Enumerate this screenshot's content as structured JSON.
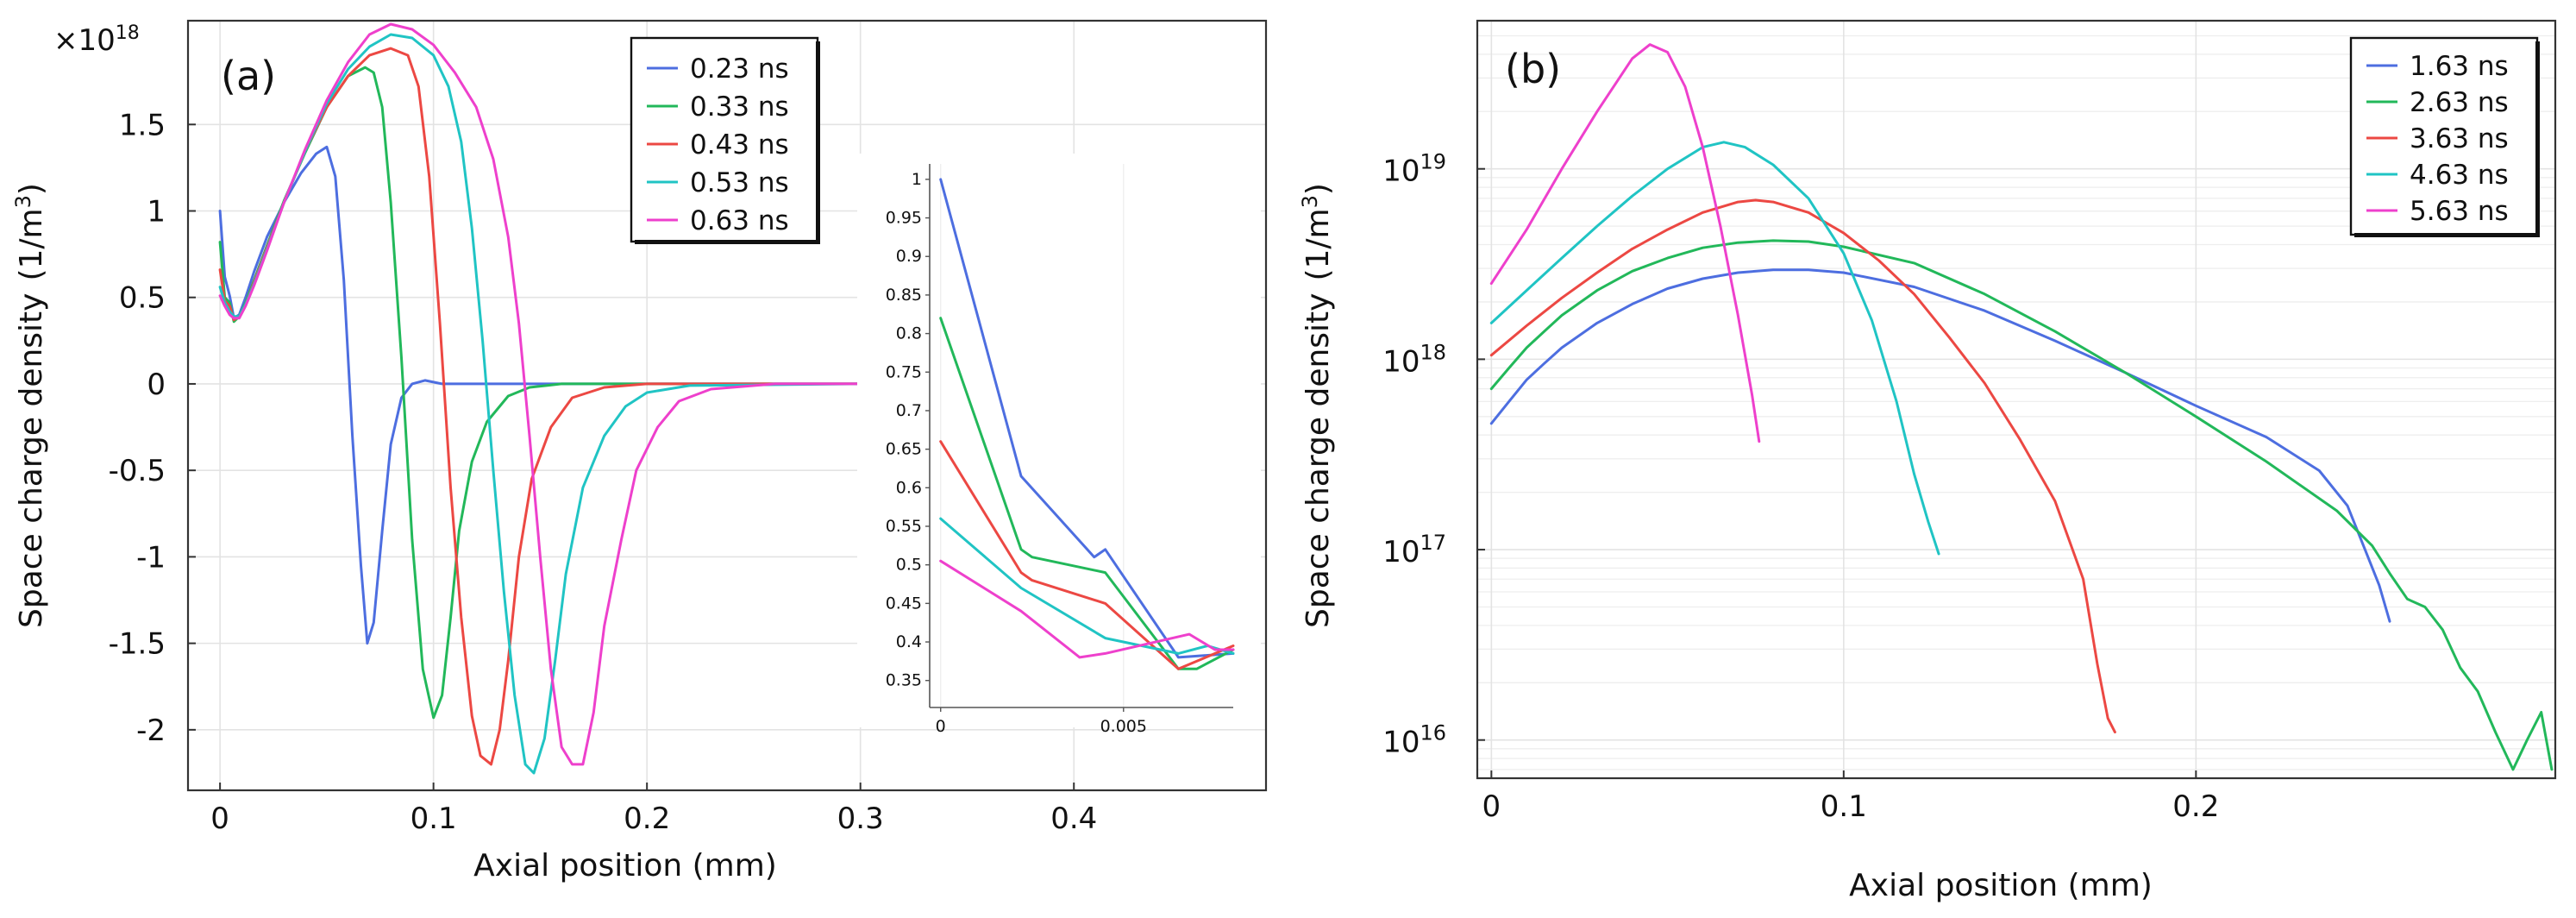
{
  "chart_data": [
    {
      "type": "line",
      "panel_label": "(a)",
      "xlabel": "Axial position (mm)",
      "ylabel": "Space charge density",
      "ylabel_unit_pre": "(1/m",
      "ylabel_unit_sup": "3",
      "ylabel_unit_post": ")",
      "multiplier_base": "×10",
      "multiplier_exp": "18",
      "xlim": [
        -0.015,
        0.49
      ],
      "ylim": [
        -2.35,
        2.1
      ],
      "xticks": [
        0,
        0.1,
        0.2,
        0.3,
        0.4
      ],
      "xtick_labels": [
        "0",
        "0.1",
        "0.2",
        "0.3",
        "0.4"
      ],
      "yticks": [
        1.5,
        1,
        0.5,
        0,
        -0.5,
        -1,
        -1.5,
        -2
      ],
      "ytick_labels": [
        "1.5",
        "1",
        "0.5",
        "0",
        "-0.5",
        "-1",
        "-1.5",
        "-2"
      ],
      "legend_position": "top-right",
      "series": [
        {
          "name": "0.23 ns",
          "color": "#4d6ee0",
          "x": [
            0,
            0.0022,
            0.0045,
            0.0065,
            0.009,
            0.012,
            0.016,
            0.022,
            0.03,
            0.038,
            0.045,
            0.05,
            0.054,
            0.058,
            0.062,
            0.066,
            0.069,
            0.072,
            0.076,
            0.08,
            0.085,
            0.09,
            0.096,
            0.104,
            0.115,
            0.13,
            0.15,
            0.2,
            0.3
          ],
          "y": [
            1.0,
            0.62,
            0.51,
            0.38,
            0.4,
            0.5,
            0.65,
            0.85,
            1.05,
            1.22,
            1.33,
            1.37,
            1.2,
            0.6,
            -0.3,
            -1.05,
            -1.5,
            -1.38,
            -0.85,
            -0.35,
            -0.08,
            0.0,
            0.02,
            0.0,
            0.0,
            0.0,
            0.0,
            0.0,
            0.0
          ]
        },
        {
          "name": "0.33 ns",
          "color": "#22b85a",
          "x": [
            0,
            0.0022,
            0.0045,
            0.0065,
            0.009,
            0.012,
            0.016,
            0.022,
            0.03,
            0.04,
            0.05,
            0.06,
            0.068,
            0.072,
            0.076,
            0.08,
            0.085,
            0.09,
            0.095,
            0.1,
            0.104,
            0.108,
            0.112,
            0.118,
            0.125,
            0.135,
            0.145,
            0.16,
            0.18,
            0.3
          ],
          "y": [
            0.82,
            0.5,
            0.47,
            0.36,
            0.39,
            0.47,
            0.6,
            0.8,
            1.06,
            1.34,
            1.6,
            1.78,
            1.83,
            1.8,
            1.6,
            1.05,
            0.15,
            -0.9,
            -1.65,
            -1.93,
            -1.8,
            -1.35,
            -0.85,
            -0.45,
            -0.22,
            -0.07,
            -0.02,
            0.0,
            0.0,
            0.0
          ]
        },
        {
          "name": "0.43 ns",
          "color": "#ec4843",
          "x": [
            0,
            0.0022,
            0.0045,
            0.0065,
            0.009,
            0.012,
            0.016,
            0.022,
            0.03,
            0.04,
            0.05,
            0.06,
            0.07,
            0.08,
            0.088,
            0.093,
            0.098,
            0.103,
            0.108,
            0.113,
            0.118,
            0.122,
            0.127,
            0.131,
            0.135,
            0.14,
            0.146,
            0.155,
            0.165,
            0.18,
            0.2,
            0.3
          ],
          "y": [
            0.66,
            0.48,
            0.45,
            0.37,
            0.39,
            0.46,
            0.59,
            0.79,
            1.05,
            1.35,
            1.6,
            1.78,
            1.9,
            1.94,
            1.9,
            1.72,
            1.2,
            0.35,
            -0.6,
            -1.35,
            -1.92,
            -2.15,
            -2.2,
            -2.0,
            -1.6,
            -1.0,
            -0.55,
            -0.25,
            -0.08,
            -0.02,
            0.0,
            0.0
          ]
        },
        {
          "name": "0.53 ns",
          "color": "#20c4c4",
          "x": [
            0,
            0.0022,
            0.0045,
            0.0065,
            0.009,
            0.012,
            0.016,
            0.022,
            0.03,
            0.04,
            0.05,
            0.06,
            0.07,
            0.08,
            0.09,
            0.1,
            0.107,
            0.113,
            0.118,
            0.123,
            0.128,
            0.133,
            0.138,
            0.143,
            0.147,
            0.152,
            0.157,
            0.162,
            0.17,
            0.18,
            0.19,
            0.2,
            0.22,
            0.3
          ],
          "y": [
            0.56,
            0.47,
            0.42,
            0.39,
            0.39,
            0.46,
            0.58,
            0.78,
            1.05,
            1.35,
            1.62,
            1.82,
            1.95,
            2.02,
            2.0,
            1.9,
            1.72,
            1.4,
            0.9,
            0.25,
            -0.5,
            -1.2,
            -1.8,
            -2.2,
            -2.25,
            -2.05,
            -1.6,
            -1.1,
            -0.6,
            -0.3,
            -0.13,
            -0.05,
            -0.01,
            0.0
          ]
        },
        {
          "name": "0.63 ns",
          "color": "#ee40cc",
          "x": [
            0,
            0.0022,
            0.0045,
            0.0065,
            0.009,
            0.012,
            0.016,
            0.022,
            0.03,
            0.04,
            0.05,
            0.06,
            0.07,
            0.08,
            0.09,
            0.1,
            0.11,
            0.12,
            0.128,
            0.135,
            0.14,
            0.145,
            0.15,
            0.155,
            0.16,
            0.165,
            0.17,
            0.175,
            0.18,
            0.188,
            0.195,
            0.205,
            0.215,
            0.23,
            0.26,
            0.3
          ],
          "y": [
            0.51,
            0.45,
            0.4,
            0.38,
            0.38,
            0.45,
            0.57,
            0.77,
            1.05,
            1.36,
            1.64,
            1.86,
            2.02,
            2.08,
            2.05,
            1.96,
            1.8,
            1.6,
            1.3,
            0.85,
            0.35,
            -0.3,
            -1.0,
            -1.65,
            -2.1,
            -2.2,
            -2.2,
            -1.9,
            -1.4,
            -0.9,
            -0.5,
            -0.25,
            -0.1,
            -0.03,
            0.0,
            0.0
          ]
        }
      ],
      "inset": {
        "xlim": [
          -0.0003,
          0.008
        ],
        "ylim": [
          0.315,
          1.02
        ],
        "xticks": [
          0,
          0.005
        ],
        "xtick_labels": [
          "0",
          "0.005"
        ],
        "yticks": [
          1,
          0.95,
          0.9,
          0.85,
          0.8,
          0.75,
          0.7,
          0.65,
          0.6,
          0.55,
          0.5,
          0.45,
          0.4,
          0.35
        ],
        "ytick_labels": [
          "1",
          "0.95",
          "0.9",
          "0.85",
          "0.8",
          "0.75",
          "0.7",
          "0.65",
          "0.6",
          "0.55",
          "0.5",
          "0.45",
          "0.4",
          "0.35"
        ],
        "series": [
          {
            "name": "0.23 ns",
            "x": [
              0,
              0.0022,
              0.0042,
              0.0045,
              0.0065,
              0.008
            ],
            "y": [
              1.0,
              0.615,
              0.51,
              0.52,
              0.38,
              0.385
            ]
          },
          {
            "name": "0.33 ns",
            "x": [
              0,
              0.0022,
              0.0025,
              0.0045,
              0.0065,
              0.007,
              0.008
            ],
            "y": [
              0.82,
              0.52,
              0.51,
              0.49,
              0.365,
              0.365,
              0.39
            ]
          },
          {
            "name": "0.43 ns",
            "x": [
              0,
              0.0022,
              0.0025,
              0.0045,
              0.0065,
              0.008
            ],
            "y": [
              0.66,
              0.49,
              0.48,
              0.45,
              0.365,
              0.395
            ]
          },
          {
            "name": "0.53 ns",
            "x": [
              0,
              0.0022,
              0.0045,
              0.0065,
              0.0073,
              0.008
            ],
            "y": [
              0.56,
              0.47,
              0.405,
              0.385,
              0.395,
              0.385
            ]
          },
          {
            "name": "0.63 ns",
            "x": [
              0,
              0.0022,
              0.0038,
              0.0045,
              0.0068,
              0.0075,
              0.008
            ],
            "y": [
              0.505,
              0.44,
              0.38,
              0.385,
              0.41,
              0.39,
              0.39
            ]
          }
        ]
      }
    },
    {
      "type": "line",
      "yscale": "log",
      "panel_label": "(b)",
      "xlabel": "Axial position (mm)",
      "ylabel": "Space charge density",
      "ylabel_unit_pre": "(1/m",
      "ylabel_unit_sup": "3",
      "ylabel_unit_post": ")",
      "xlim": [
        -0.004,
        0.302
      ],
      "ylim": [
        6300000000000000.0,
        6e+19
      ],
      "xticks": [
        0,
        0.1,
        0.2
      ],
      "xtick_labels": [
        "0",
        "0.1",
        "0.2"
      ],
      "yticks": [
        1e+16,
        1e+17,
        1e+18,
        1e+19
      ],
      "ytick_base": "10",
      "ytick_exponents": [
        "16",
        "17",
        "18",
        "19"
      ],
      "legend_position": "top-right",
      "series": [
        {
          "name": "1.63 ns",
          "color": "#4d6ee0",
          "x": [
            0,
            0.005,
            0.01,
            0.015,
            0.02,
            0.03,
            0.04,
            0.05,
            0.06,
            0.07,
            0.08,
            0.09,
            0.1,
            0.12,
            0.14,
            0.16,
            0.18,
            0.2,
            0.22,
            0.235,
            0.243,
            0.248,
            0.252,
            0.255
          ],
          "y": [
            4.6e+17,
            6e+17,
            7.8e+17,
            9.5e+17,
            1.15e+18,
            1.55e+18,
            1.95e+18,
            2.35e+18,
            2.65e+18,
            2.85e+18,
            2.95e+18,
            2.95e+18,
            2.85e+18,
            2.4e+18,
            1.8e+18,
            1.25e+18,
            8.5e+17,
            5.7e+17,
            3.9e+17,
            2.6e+17,
            1.7e+17,
            1e+17,
            6.5e+16,
            4.2e+16
          ]
        },
        {
          "name": "2.63 ns",
          "color": "#22b85a",
          "x": [
            0,
            0.005,
            0.01,
            0.015,
            0.02,
            0.03,
            0.04,
            0.05,
            0.06,
            0.07,
            0.08,
            0.09,
            0.1,
            0.12,
            0.14,
            0.16,
            0.18,
            0.2,
            0.22,
            0.24,
            0.25,
            0.255,
            0.26,
            0.265,
            0.27,
            0.275,
            0.28,
            0.285,
            0.29,
            0.294,
            0.298,
            0.301
          ],
          "y": [
            7e+17,
            9e+17,
            1.15e+18,
            1.4e+18,
            1.7e+18,
            2.3e+18,
            2.9e+18,
            3.4e+18,
            3.85e+18,
            4.1e+18,
            4.2e+18,
            4.15e+18,
            3.9e+18,
            3.2e+18,
            2.2e+18,
            1.4e+18,
            8.5e+17,
            5e+17,
            2.9e+17,
            1.6e+17,
            1.05e+17,
            7.5e+16,
            5.5e+16,
            5e+16,
            3.8e+16,
            2.4e+16,
            1.8e+16,
            1.1e+16,
            7000000000000000.0,
            1e+16,
            1.4e+16,
            7000000000000000.0
          ]
        },
        {
          "name": "3.63 ns",
          "color": "#ec4843",
          "x": [
            0,
            0.01,
            0.02,
            0.03,
            0.04,
            0.05,
            0.06,
            0.07,
            0.075,
            0.08,
            0.09,
            0.1,
            0.11,
            0.12,
            0.13,
            0.14,
            0.15,
            0.16,
            0.168,
            0.172,
            0.175,
            0.177
          ],
          "y": [
            1.05e+18,
            1.5e+18,
            2.1e+18,
            2.85e+18,
            3.8e+18,
            4.8e+18,
            5.9e+18,
            6.7e+18,
            6.85e+18,
            6.7e+18,
            5.9e+18,
            4.6e+18,
            3.3e+18,
            2.2e+18,
            1.3e+18,
            7.5e+17,
            3.8e+17,
            1.8e+17,
            7e+16,
            2.5e+16,
            1.3e+16,
            1.1e+16
          ]
        },
        {
          "name": "4.63 ns",
          "color": "#20c4c4",
          "x": [
            0,
            0.01,
            0.02,
            0.03,
            0.04,
            0.05,
            0.06,
            0.066,
            0.072,
            0.08,
            0.09,
            0.1,
            0.108,
            0.115,
            0.12,
            0.124,
            0.127
          ],
          "y": [
            1.55e+18,
            2.3e+18,
            3.4e+18,
            5e+18,
            7.2e+18,
            1e+19,
            1.3e+19,
            1.38e+19,
            1.3e+19,
            1.05e+19,
            7e+18,
            3.6e+18,
            1.6e+18,
            6e+17,
            2.5e+17,
            1.4e+17,
            9.5e+16
          ]
        },
        {
          "name": "5.63 ns",
          "color": "#ee40cc",
          "x": [
            0,
            0.01,
            0.02,
            0.03,
            0.04,
            0.045,
            0.05,
            0.055,
            0.06,
            0.065,
            0.07,
            0.074,
            0.076
          ],
          "y": [
            2.5e+18,
            4.8e+18,
            1e+19,
            2e+19,
            3.8e+19,
            4.5e+19,
            4.1e+19,
            2.7e+19,
            1.3e+19,
            5e+18,
            1.7e+18,
            6.5e+17,
            3.7e+17
          ]
        }
      ]
    }
  ]
}
